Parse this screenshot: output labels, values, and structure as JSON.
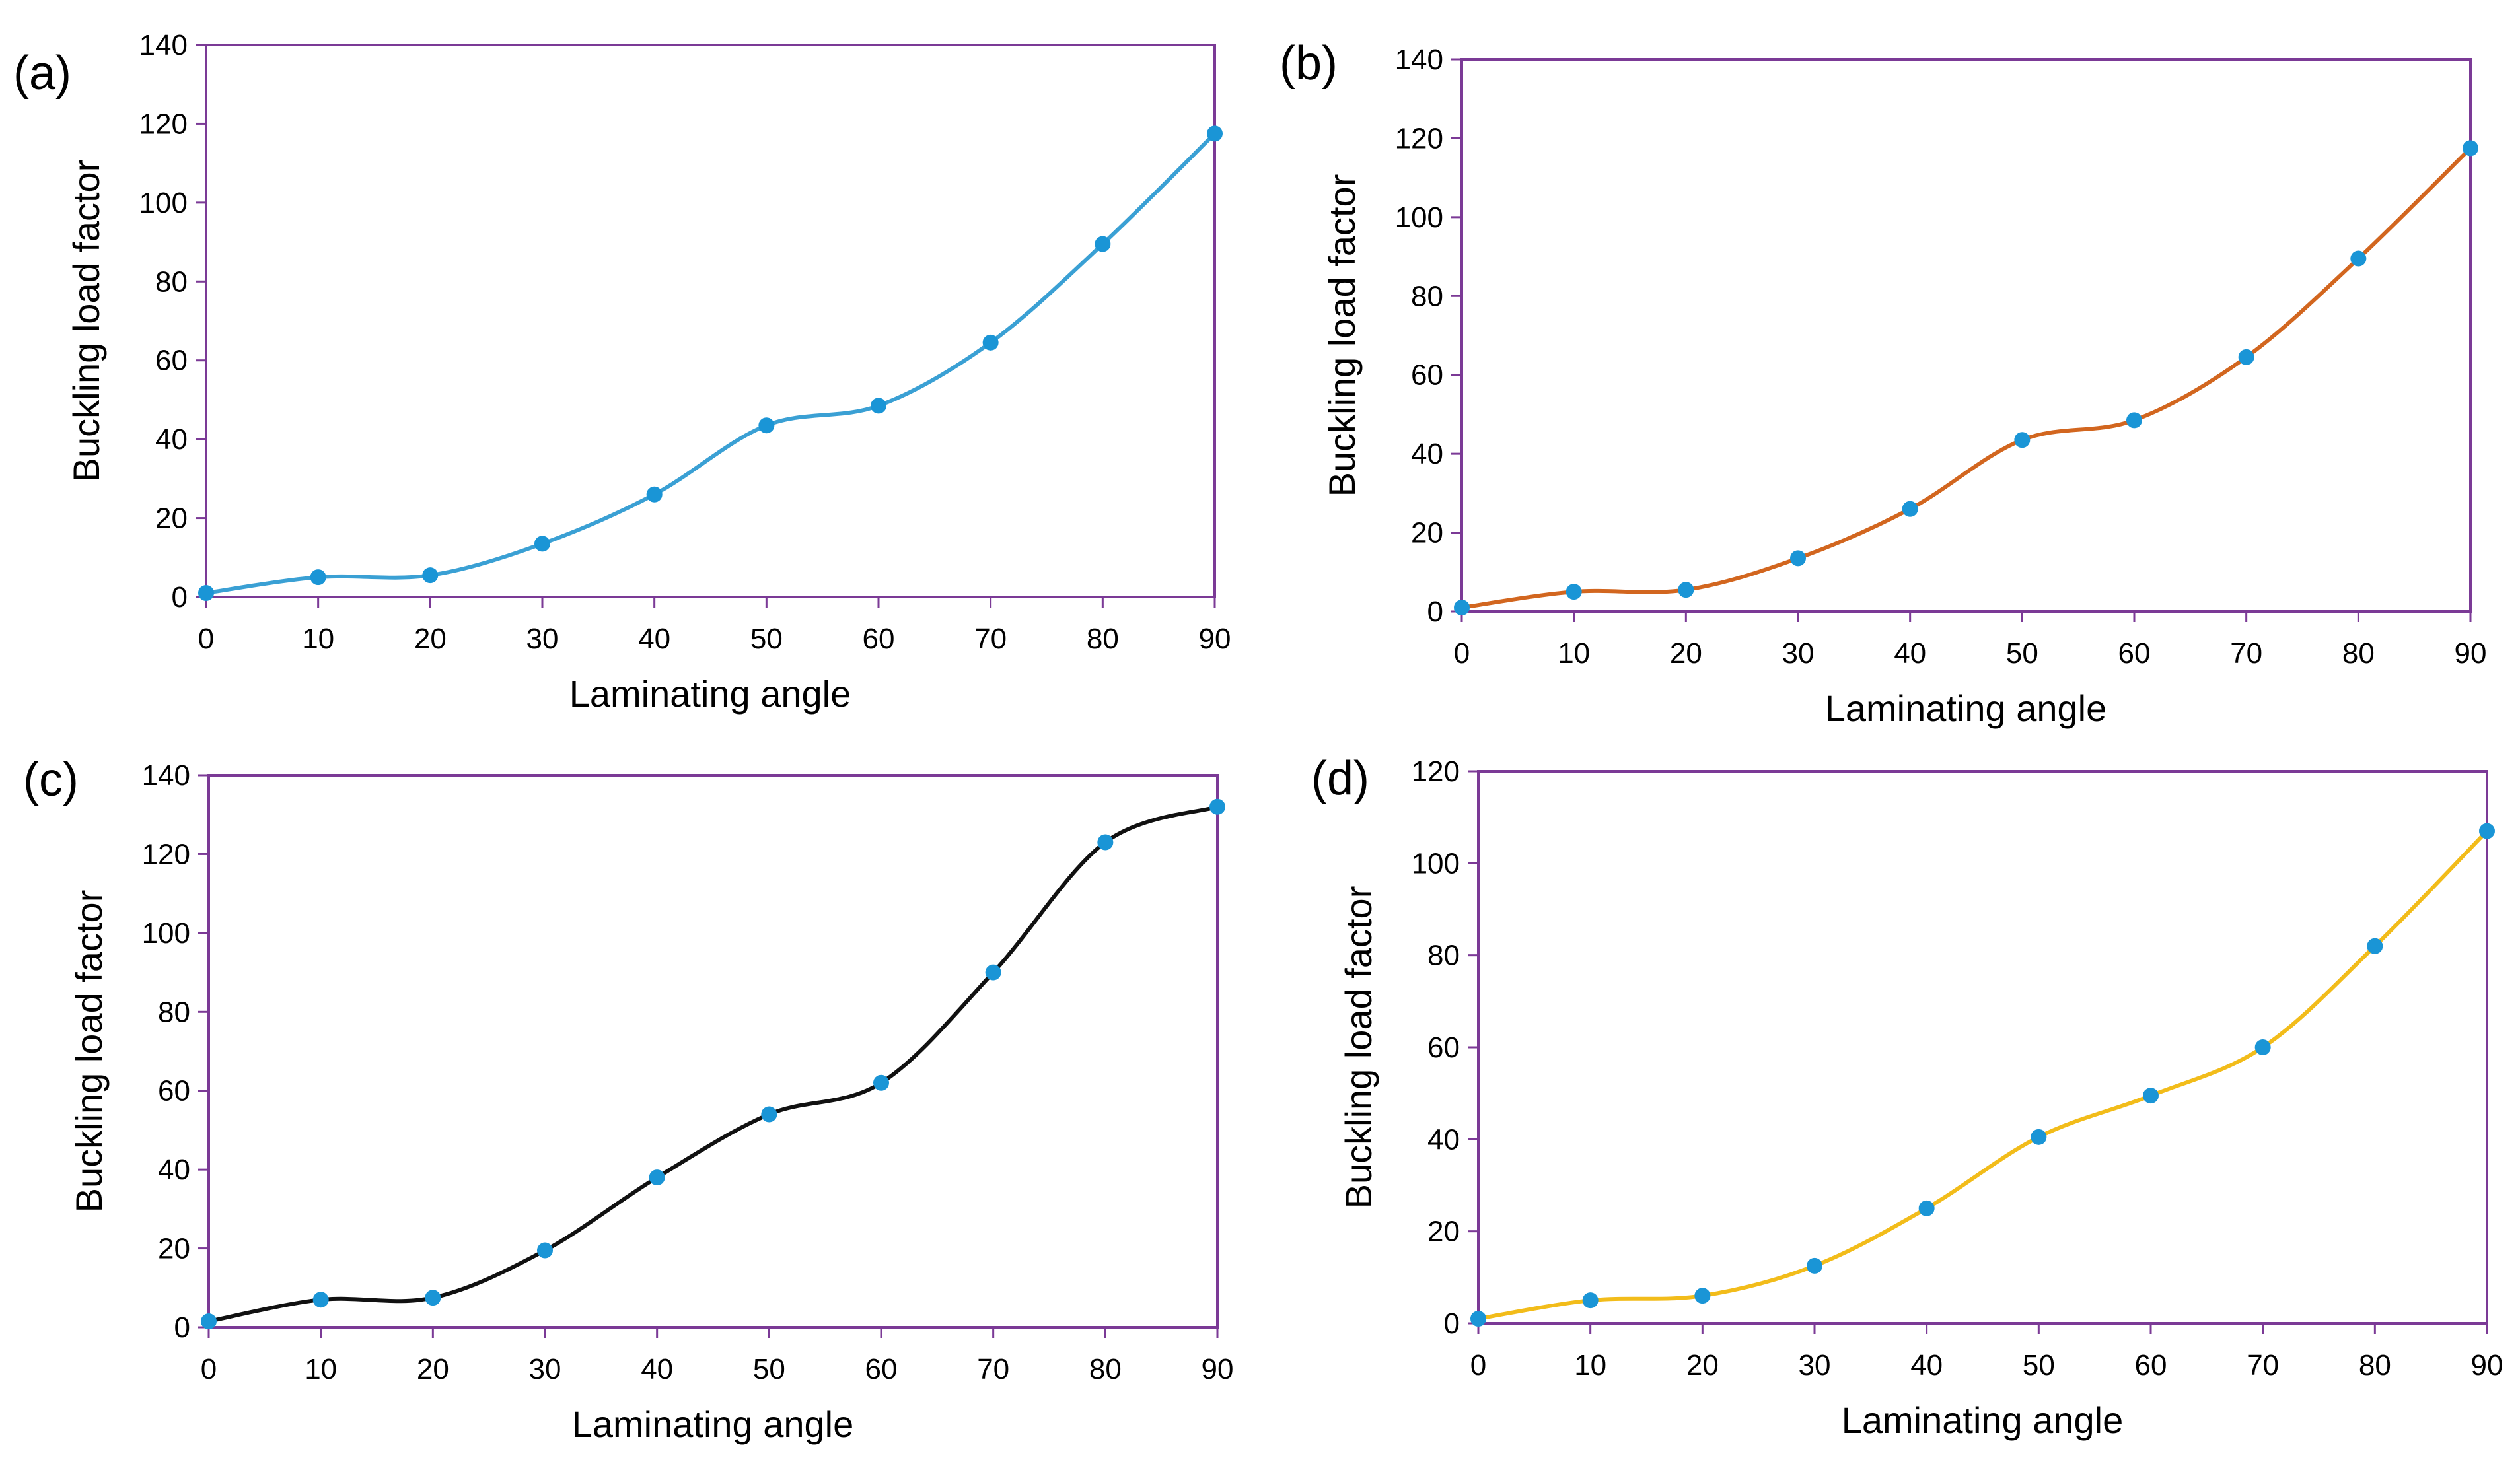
{
  "figure": {
    "frame_color": "#7b3a96",
    "marker_color": "#1a95d6",
    "marker_name": "data-point"
  },
  "chart_data": [
    {
      "type": "line",
      "panel_label": "(a)",
      "title": "",
      "xlabel": "Laminating angle",
      "ylabel": "Buckling load factor",
      "x": [
        0,
        10,
        20,
        30,
        40,
        50,
        60,
        70,
        80,
        90
      ],
      "series": [
        {
          "name": "buckling-load",
          "values": [
            1,
            5,
            5.5,
            13.5,
            26,
            43.5,
            48.5,
            64.5,
            89.5,
            117.5
          ],
          "color": "#3aa0d4"
        }
      ],
      "xlim": [
        0,
        90
      ],
      "ylim": [
        0,
        140
      ],
      "xticks": [
        0,
        10,
        20,
        30,
        40,
        50,
        60,
        70,
        80,
        90
      ],
      "yticks": [
        0,
        20,
        40,
        60,
        80,
        100,
        120,
        140
      ],
      "grid": false,
      "legend": "none"
    },
    {
      "type": "line",
      "panel_label": "(b)",
      "title": "",
      "xlabel": "Laminating angle",
      "ylabel": "Buckling load factor",
      "x": [
        0,
        10,
        20,
        30,
        40,
        50,
        60,
        70,
        80,
        90
      ],
      "series": [
        {
          "name": "buckling-load",
          "values": [
            1,
            5,
            5.5,
            13.5,
            26,
            43.5,
            48.5,
            64.5,
            89.5,
            117.5
          ],
          "color": "#d2661f"
        }
      ],
      "xlim": [
        0,
        90
      ],
      "ylim": [
        0,
        140
      ],
      "xticks": [
        0,
        10,
        20,
        30,
        40,
        50,
        60,
        70,
        80,
        90
      ],
      "yticks": [
        0,
        20,
        40,
        60,
        80,
        100,
        120,
        140
      ],
      "grid": false,
      "legend": "none"
    },
    {
      "type": "line",
      "panel_label": "(c)",
      "title": "",
      "xlabel": "Laminating angle",
      "ylabel": "Buckling load factor",
      "x": [
        0,
        10,
        20,
        30,
        40,
        50,
        60,
        70,
        80,
        90
      ],
      "series": [
        {
          "name": "buckling-load",
          "values": [
            1.5,
            7,
            7.5,
            19.5,
            38,
            54,
            62,
            90,
            123,
            132
          ],
          "color": "#111111"
        }
      ],
      "xlim": [
        0,
        90
      ],
      "ylim": [
        0,
        140
      ],
      "xticks": [
        0,
        10,
        20,
        30,
        40,
        50,
        60,
        70,
        80,
        90
      ],
      "yticks": [
        0,
        20,
        40,
        60,
        80,
        100,
        120,
        140
      ],
      "grid": false,
      "legend": "none"
    },
    {
      "type": "line",
      "panel_label": "(d)",
      "title": "",
      "xlabel": "Laminating angle",
      "ylabel": "Buckling load factor",
      "x": [
        0,
        10,
        20,
        30,
        40,
        50,
        60,
        70,
        80,
        90
      ],
      "series": [
        {
          "name": "buckling-load",
          "values": [
            1,
            5,
            6,
            12.5,
            25,
            40.5,
            49.5,
            60,
            82,
            107
          ],
          "color": "#f2bc1a"
        }
      ],
      "xlim": [
        0,
        90
      ],
      "ylim": [
        0,
        120
      ],
      "xticks": [
        0,
        10,
        20,
        30,
        40,
        50,
        60,
        70,
        80,
        90
      ],
      "yticks": [
        0,
        20,
        40,
        60,
        80,
        100,
        120
      ],
      "grid": false,
      "legend": "none"
    }
  ]
}
